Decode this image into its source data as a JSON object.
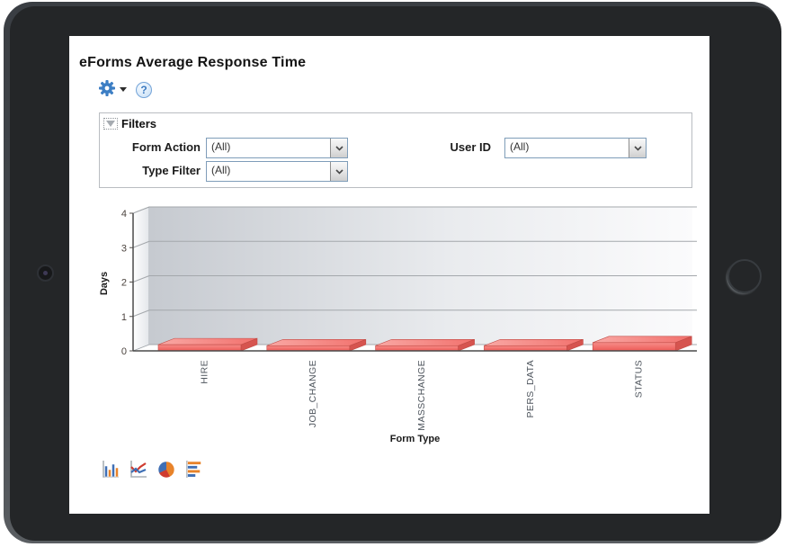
{
  "header": {
    "title": "eForms Average Response Time"
  },
  "toolbar": {
    "icons": {
      "settings": "gear-icon",
      "settings_menu": "chevron-down-icon",
      "help": "question-mark-icon",
      "help_glyph": "?"
    }
  },
  "filters": {
    "header": "Filters",
    "collapse_icon": "triangle-down-icon",
    "fields": [
      {
        "label": "Form Action",
        "value": "(All)"
      },
      {
        "label": "Type Filter",
        "value": "(All)"
      },
      {
        "label": "User ID",
        "value": "(All)"
      }
    ]
  },
  "chart_data": {
    "type": "bar",
    "style": "3d",
    "categories": [
      "HIRE",
      "JOB_CHANGE",
      "MASSCHANGE",
      "PERS_DATA",
      "STATUS"
    ],
    "values": [
      0.18,
      0.15,
      0.15,
      0.15,
      0.24
    ],
    "title": "",
    "xlabel": "Form Type",
    "ylabel": "Days",
    "ylim": [
      0,
      4
    ],
    "yticks": [
      0,
      1,
      2,
      3,
      4
    ],
    "grid": true,
    "legend": false,
    "bar_color": "#ee5b57",
    "bar_top_color": "#f9a8a4",
    "grid_color": "#a4a8ac",
    "wall_gradient": [
      "#c6cad0",
      "#fbfbfc"
    ]
  },
  "chart_type_switcher": [
    {
      "name": "column-chart-icon"
    },
    {
      "name": "line-chart-icon"
    },
    {
      "name": "pie-chart-icon"
    },
    {
      "name": "horizontal-bar-chart-icon"
    }
  ]
}
